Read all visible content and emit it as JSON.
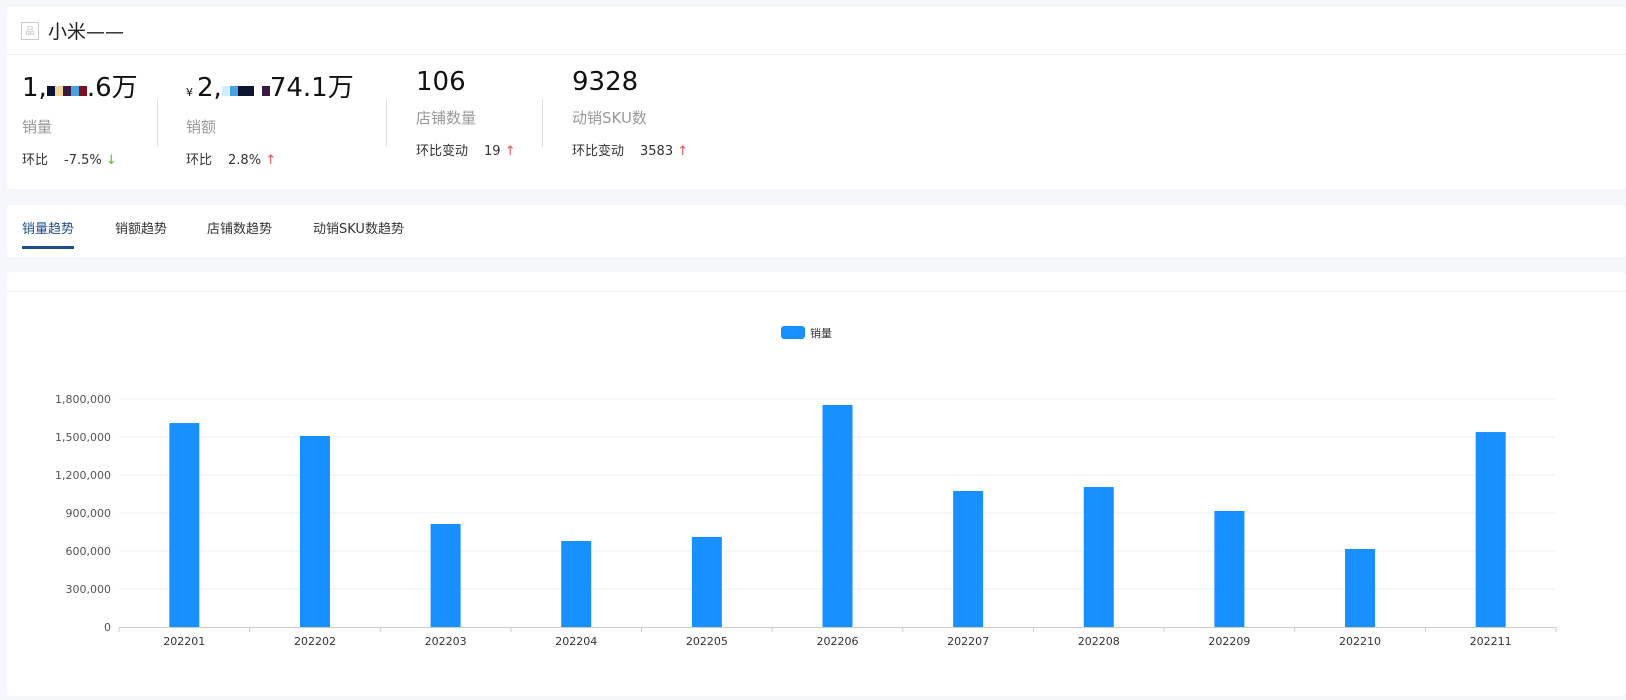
{
  "header": {
    "title": "小米——",
    "icon": "product-icon"
  },
  "metrics": [
    {
      "value_prefix": "1,",
      "value_suffix": ".6万",
      "label": "销量",
      "change_label": "环比",
      "change_value": "-7.5%",
      "direction": "down"
    },
    {
      "currency": "¥",
      "value_prefix": "2,",
      "value_suffix": "74.1万",
      "label": "销额",
      "change_label": "环比",
      "change_value": "2.8%",
      "direction": "up"
    },
    {
      "value": "106",
      "label": "店铺数量",
      "change_label": "环比变动",
      "change_value": "19",
      "direction": "up"
    },
    {
      "value": "9328",
      "label": "动销SKU数",
      "change_label": "环比变动",
      "change_value": "3583",
      "direction": "up"
    }
  ],
  "arrows": {
    "up": "↑",
    "down": "↓"
  },
  "tabs": [
    {
      "label": "销量趋势",
      "active": true
    },
    {
      "label": "销额趋势"
    },
    {
      "label": "店铺数趋势"
    },
    {
      "label": "动销SKU数趋势"
    }
  ],
  "colors": {
    "bar": "#1890ff",
    "active_tab": "#1f4e8c",
    "up": "#e0505a",
    "down": "#52c41a"
  },
  "chart_data": {
    "type": "bar",
    "categories": [
      "202201",
      "202202",
      "202203",
      "202204",
      "202205",
      "202206",
      "202207",
      "202208",
      "202209",
      "202210",
      "202211"
    ],
    "series": [
      {
        "name": "销量",
        "values": [
          1610000,
          1508000,
          813000,
          679000,
          711000,
          1753000,
          1074000,
          1105000,
          916000,
          616000,
          1539000
        ]
      }
    ],
    "ylim": [
      0,
      1800000
    ],
    "yticks": [
      "0",
      "300,000",
      "600,000",
      "900,000",
      "1,200,000",
      "1,500,000",
      "1,800,000"
    ],
    "grid": true,
    "legend": "top-center"
  }
}
